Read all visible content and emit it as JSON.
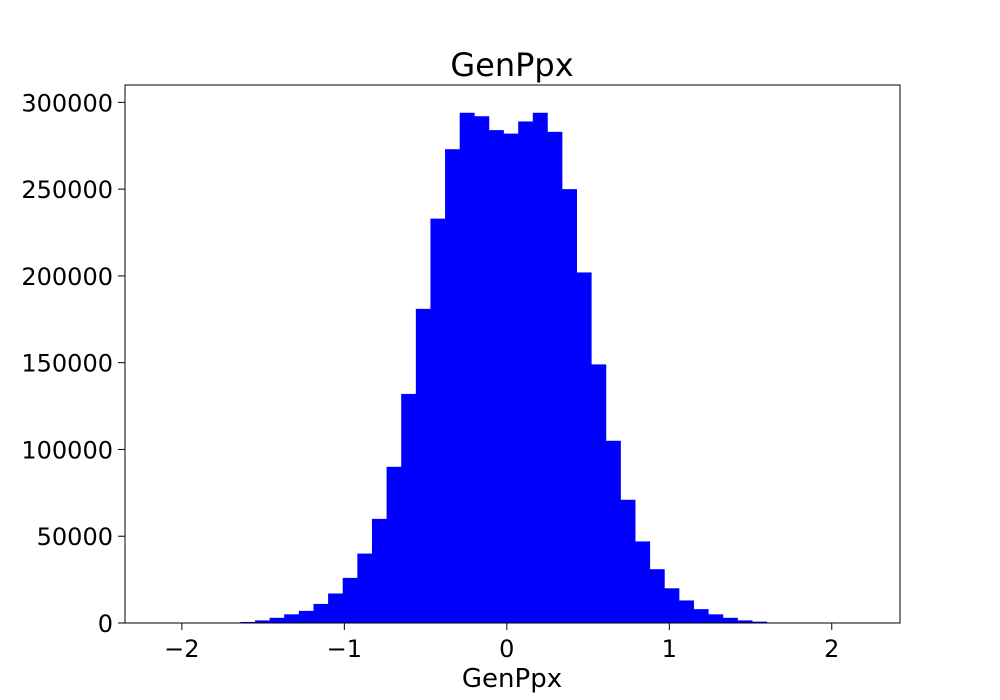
{
  "chart_data": {
    "type": "bar",
    "title": "GenPpx",
    "xlabel": "GenPpx",
    "ylabel": "",
    "xlim": [
      -2.35,
      2.42
    ],
    "ylim": [
      0,
      310000
    ],
    "xticks": [
      -2,
      -1,
      0,
      1,
      2
    ],
    "xtick_labels": [
      "−2",
      "−1",
      "0",
      "1",
      "2"
    ],
    "yticks": [
      0,
      50000,
      100000,
      150000,
      200000,
      250000,
      300000
    ],
    "ytick_labels": [
      "0",
      "50000",
      "100000",
      "150000",
      "200000",
      "250000",
      "300000"
    ],
    "grid": false,
    "bar_color": "#0000ff",
    "bin_edges": [
      -2.18,
      -2.09,
      -2.0,
      -1.91,
      -1.82,
      -1.73,
      -1.64,
      -1.55,
      -1.46,
      -1.37,
      -1.28,
      -1.19,
      -1.1,
      -1.01,
      -0.92,
      -0.83,
      -0.74,
      -0.65,
      -0.56,
      -0.47,
      -0.38,
      -0.29,
      -0.2,
      -0.11,
      -0.02,
      0.07,
      0.16,
      0.25,
      0.34,
      0.43,
      0.52,
      0.61,
      0.7,
      0.79,
      0.88,
      0.97,
      1.06,
      1.15,
      1.24,
      1.33,
      1.42,
      1.51,
      1.6,
      1.69,
      1.78,
      1.87,
      1.96,
      2.05,
      2.14,
      2.23
    ],
    "values": [
      0,
      0,
      0,
      0,
      50,
      200,
      600,
      1500,
      3000,
      5000,
      7000,
      11000,
      17000,
      26000,
      40000,
      60000,
      90000,
      132000,
      181000,
      233000,
      273000,
      294000,
      292000,
      284000,
      282000,
      289000,
      294000,
      283000,
      250000,
      202000,
      149000,
      105000,
      71000,
      47000,
      31000,
      20000,
      13000,
      8000,
      5000,
      3000,
      1500,
      800,
      300,
      100,
      30,
      10,
      0,
      0,
      0
    ]
  }
}
